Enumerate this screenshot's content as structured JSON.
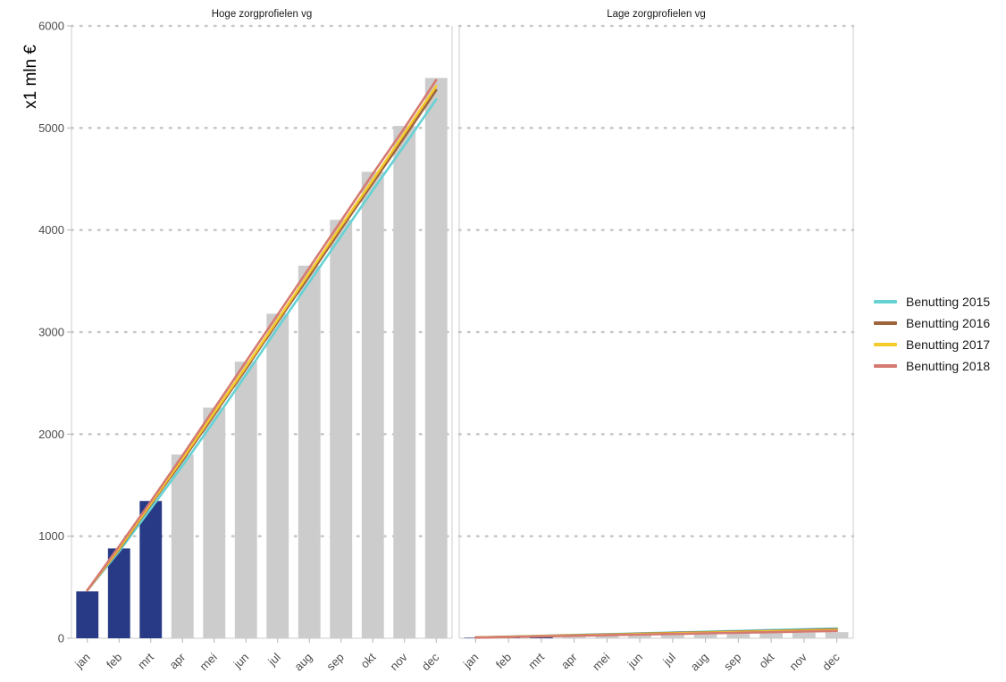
{
  "chart_data": {
    "type": "bar",
    "ylabel": "x1 mln €",
    "ylim": [
      0,
      6000
    ],
    "yticks": [
      0,
      1000,
      2000,
      3000,
      4000,
      5000,
      6000
    ],
    "grid": "horizontal dotted",
    "legend_position": "right",
    "categories": [
      "jan",
      "feb",
      "mrt",
      "apr",
      "mei",
      "jun",
      "jul",
      "aug",
      "sep",
      "okt",
      "nov",
      "dec"
    ],
    "actual_bar_color": "#283a85",
    "forecast_bar_color": "#cccccc",
    "legend": [
      {
        "name": "Benutting 2015",
        "color": "#66d2d4"
      },
      {
        "name": "Benutting 2016",
        "color": "#a0643c"
      },
      {
        "name": "Benutting 2017",
        "color": "#f5cb2a"
      },
      {
        "name": "Benutting 2018",
        "color": "#d47a72"
      }
    ],
    "panels": [
      {
        "title": "Hoge zorgprofielen vg",
        "bars": [
          460,
          880,
          1345,
          1800,
          2260,
          2710,
          3180,
          3650,
          4100,
          4570,
          5020,
          5490
        ],
        "actual_months": 3,
        "lines": [
          {
            "name": "Benutting 2015",
            "values": [
              470,
              850,
              1270,
              1690,
              2130,
              2580,
              3040,
              3490,
              3940,
              4390,
              4830,
              5280
            ]
          },
          {
            "name": "Benutting 2016",
            "values": [
              470,
              870,
              1310,
              1740,
              2190,
              2640,
              3100,
              3550,
              4010,
              4460,
              4910,
              5370
            ]
          },
          {
            "name": "Benutting 2017",
            "values": [
              470,
              880,
              1320,
              1760,
              2210,
              2660,
              3120,
              3580,
              4040,
              4490,
              4950,
              5410
            ]
          },
          {
            "name": "Benutting 2018",
            "values": [
              470,
              900,
              1340,
              1790,
              2250,
              2710,
              3170,
              3630,
              4090,
              4550,
              5000,
              5470
            ]
          }
        ]
      },
      {
        "title": "Lage zorgprofielen vg",
        "bars": [
          5,
          10,
          15,
          20,
          25,
          30,
          35,
          40,
          45,
          50,
          55,
          60
        ],
        "actual_months": 3,
        "lines": [
          {
            "name": "Benutting 2015",
            "values": [
              8,
              16,
              24,
              32,
              40,
              48,
              56,
              64,
              72,
              80,
              88,
              96
            ]
          },
          {
            "name": "Benutting 2016",
            "values": [
              8,
              15,
              22,
              30,
              37,
              44,
              52,
              59,
              66,
              73,
              80,
              88
            ]
          },
          {
            "name": "Benutting 2017",
            "values": [
              7,
              14,
              21,
              27,
              34,
              41,
              48,
              54,
              61,
              68,
              74,
              80
            ]
          },
          {
            "name": "Benutting 2018",
            "values": [
              6,
              12,
              18,
              24,
              30,
              36,
              42,
              48,
              54,
              60,
              66,
              72
            ]
          }
        ]
      }
    ]
  }
}
